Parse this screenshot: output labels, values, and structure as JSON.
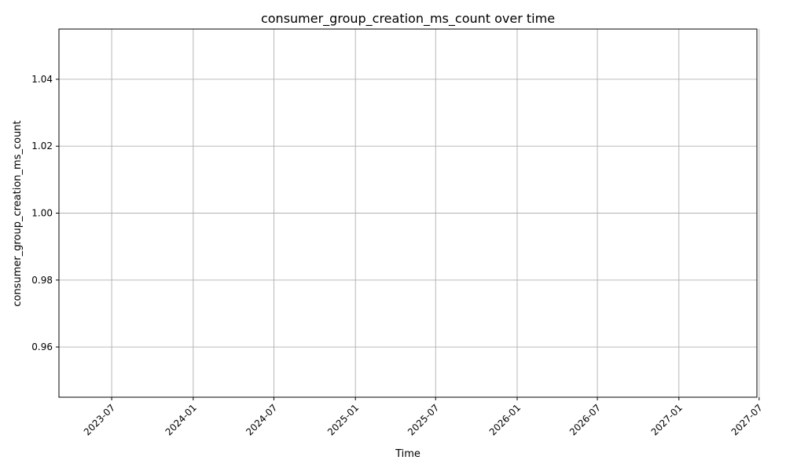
{
  "chart_data": {
    "type": "line",
    "title": "consumer_group_creation_ms_count over time",
    "xlabel": "Time",
    "ylabel": "consumer_group_creation_ms_count",
    "x_scale": "time",
    "x_ticks": [
      "2023-07",
      "2024-01",
      "2024-07",
      "2025-01",
      "2025-07",
      "2026-01",
      "2026-07",
      "2027-01",
      "2027-07"
    ],
    "y_ticks": [
      "0.96",
      "0.98",
      "1.00",
      "1.02",
      "1.04"
    ],
    "ylim": [
      0.945,
      1.055
    ],
    "xlim": [
      "2023-03-04",
      "2027-06-26"
    ],
    "series": [
      {
        "x": [],
        "y": []
      }
    ],
    "grid": true,
    "legend": "none",
    "colors": {
      "line": "#1f77b4",
      "grid": "#b0b0b0",
      "axes": "#000000",
      "background": "#ffffff"
    }
  }
}
